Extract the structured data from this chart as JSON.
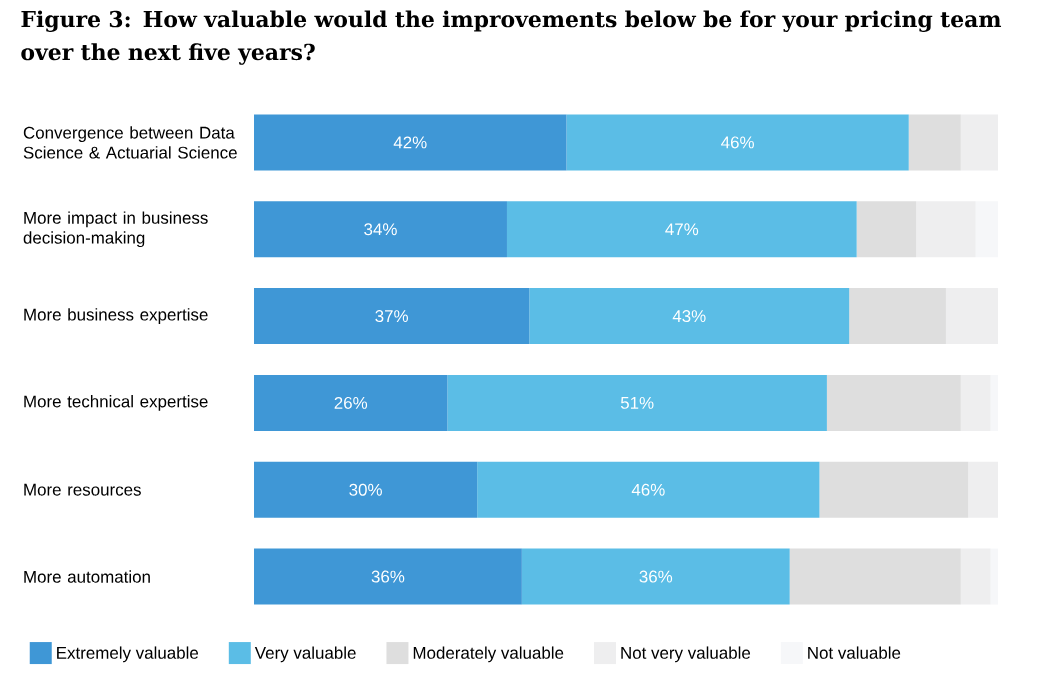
{
  "chart_data": {
    "type": "bar",
    "orientation": "horizontal",
    "stacked": true,
    "title": "Figure 3: How valuable would the improvements below be for your pricing team over the next five years?",
    "categories": [
      "Convergence between Data Science & Actuarial Science",
      "More impact in business decision-making",
      "More business expertise",
      "More technical expertise",
      "More resources",
      "More automation"
    ],
    "series": [
      {
        "name": "Extremely valuable",
        "color": "#3f97d6",
        "values": [
          42,
          34,
          37,
          26,
          30,
          36
        ],
        "value_labels": [
          "42%",
          "34%",
          "37%",
          "26%",
          "30%",
          "36%"
        ]
      },
      {
        "name": "Very valuable",
        "color": "#5bbde6",
        "values": [
          46,
          47,
          43,
          51,
          46,
          36
        ],
        "value_labels": [
          "46%",
          "47%",
          "43%",
          "51%",
          "46%",
          "36%"
        ]
      },
      {
        "name": "Moderately valuable",
        "color": "#dedede",
        "values": [
          7,
          8,
          13,
          18,
          20,
          23
        ]
      },
      {
        "name": "Not very valuable",
        "color": "#eeeeef",
        "values": [
          5,
          8,
          7,
          4,
          4,
          4
        ]
      },
      {
        "name": "Not valuable",
        "color": "#f6f7f9",
        "values": [
          0,
          3,
          0,
          1,
          0,
          1
        ]
      }
    ],
    "legend": "bottom"
  }
}
